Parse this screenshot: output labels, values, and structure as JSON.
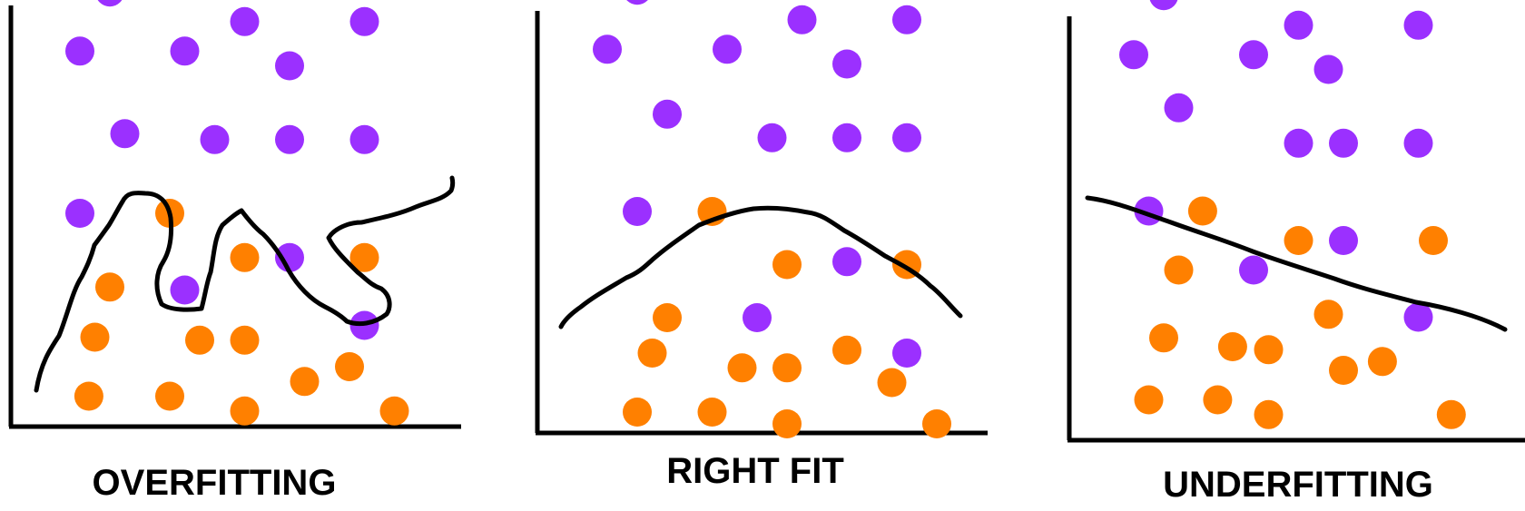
{
  "colors": {
    "class_a": "#9B30FF",
    "class_b": "#FF8000",
    "axis": "#000000",
    "curve": "#000000"
  },
  "panels": [
    {
      "label": "OVERFITTING",
      "fit_type": "overfit",
      "points_a": [
        [
          2,
          13.5
        ],
        [
          1,
          11.5
        ],
        [
          4.5,
          11.5
        ],
        [
          6.5,
          12.5
        ],
        [
          10.5,
          12.5
        ],
        [
          8,
          11
        ],
        [
          2.5,
          8.7
        ],
        [
          5.5,
          8.5
        ],
        [
          8,
          8.5
        ],
        [
          10.5,
          8.5
        ],
        [
          1,
          6
        ],
        [
          8,
          4.5
        ],
        [
          4.5,
          3.4
        ],
        [
          10.5,
          2.2
        ]
      ],
      "points_b": [
        [
          4,
          6
        ],
        [
          6.5,
          4.5
        ],
        [
          10.5,
          4.5
        ],
        [
          2,
          3.5
        ],
        [
          1.5,
          1.8
        ],
        [
          5,
          1.7
        ],
        [
          6.5,
          1.7
        ],
        [
          8.5,
          0.3
        ],
        [
          10,
          0.8
        ],
        [
          1.3,
          -0.2
        ],
        [
          4,
          -0.2
        ],
        [
          6.5,
          -0.7
        ],
        [
          11.5,
          -0.7
        ]
      ],
      "curve": "squiggle"
    },
    {
      "label": "RIGHT FIT",
      "fit_type": "right",
      "points_a": [
        [
          2,
          13.5
        ],
        [
          1,
          11.5
        ],
        [
          5,
          11.5
        ],
        [
          7.5,
          12.5
        ],
        [
          11,
          12.5
        ],
        [
          9,
          11
        ],
        [
          3,
          9.3
        ],
        [
          6.5,
          8.5
        ],
        [
          9,
          8.5
        ],
        [
          11,
          8.5
        ],
        [
          2,
          6
        ],
        [
          9,
          4.3
        ],
        [
          6,
          2.4
        ],
        [
          11,
          1.2
        ]
      ],
      "points_b": [
        [
          4.5,
          6
        ],
        [
          7,
          4.2
        ],
        [
          11,
          4.2
        ],
        [
          3,
          2.4
        ],
        [
          2.5,
          1.2
        ],
        [
          5.5,
          0.7
        ],
        [
          7,
          0.7
        ],
        [
          9,
          1.3
        ],
        [
          10.5,
          0.2
        ],
        [
          2,
          -0.8
        ],
        [
          4.5,
          -0.8
        ],
        [
          7,
          -1.2
        ],
        [
          12,
          -1.2
        ]
      ],
      "curve": "hump"
    },
    {
      "label": "UNDERFITTING",
      "fit_type": "under",
      "points_a": [
        [
          2,
          13.5
        ],
        [
          1,
          11.5
        ],
        [
          5,
          11.5
        ],
        [
          6.5,
          12.5
        ],
        [
          10.5,
          12.5
        ],
        [
          7.5,
          11
        ],
        [
          2.5,
          9.7
        ],
        [
          6.5,
          8.5
        ],
        [
          8,
          8.5
        ],
        [
          10.5,
          8.5
        ],
        [
          1.5,
          6.2
        ],
        [
          8,
          5.2
        ],
        [
          5,
          4.2
        ],
        [
          10.5,
          2.6
        ]
      ],
      "points_b": [
        [
          3.3,
          6.2
        ],
        [
          6.5,
          5.2
        ],
        [
          11,
          5.2
        ],
        [
          2.5,
          4.2
        ],
        [
          7.5,
          2.7
        ],
        [
          2,
          1.9
        ],
        [
          4.3,
          1.6
        ],
        [
          5.5,
          1.5
        ],
        [
          9.3,
          1.1
        ],
        [
          8,
          0.8
        ],
        [
          1.5,
          -0.2
        ],
        [
          3.8,
          -0.2
        ],
        [
          5.5,
          -0.7
        ],
        [
          11.6,
          -0.7
        ]
      ],
      "curve": "line"
    }
  ]
}
